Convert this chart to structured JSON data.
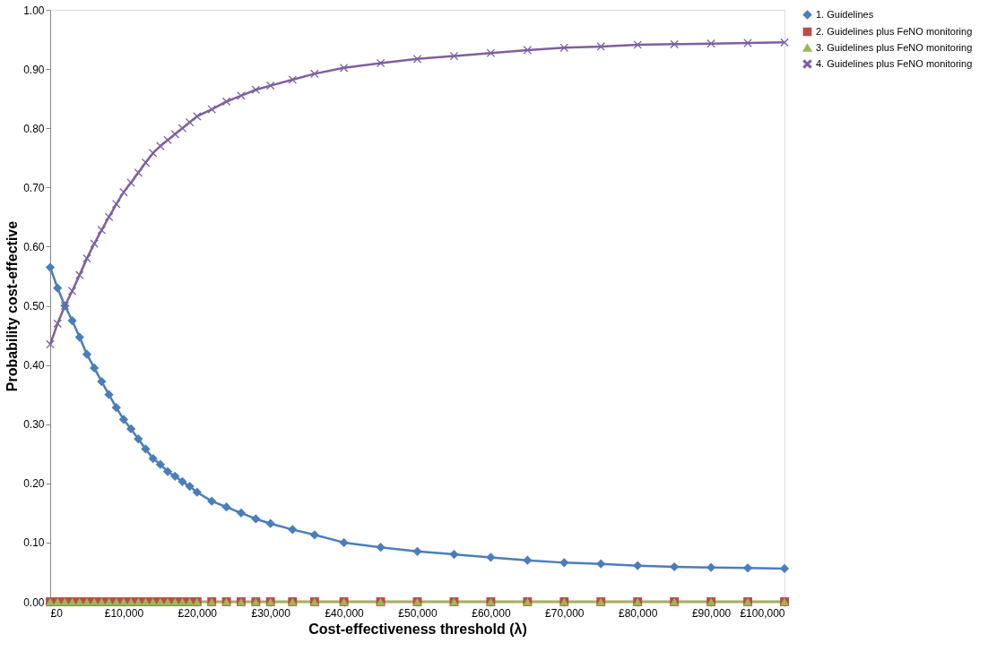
{
  "chart_data": {
    "type": "line",
    "xlabel": "Cost-effectiveness threshold (λ)",
    "ylabel": "Probability cost-effective",
    "x": [
      0,
      1000,
      2000,
      3000,
      4000,
      5000,
      6000,
      7000,
      8000,
      9000,
      10000,
      11000,
      12000,
      13000,
      14000,
      15000,
      16000,
      17000,
      18000,
      19000,
      20000,
      22000,
      24000,
      26000,
      28000,
      30000,
      33000,
      36000,
      40000,
      45000,
      50000,
      55000,
      60000,
      65000,
      70000,
      75000,
      80000,
      85000,
      90000,
      95000,
      100000
    ],
    "series": [
      {
        "name": "1. Guidelines",
        "color": "#4a7ebb",
        "marker": "diamond",
        "values": [
          0.565,
          0.53,
          0.5,
          0.475,
          0.447,
          0.418,
          0.395,
          0.372,
          0.35,
          0.328,
          0.308,
          0.292,
          0.275,
          0.258,
          0.242,
          0.232,
          0.22,
          0.212,
          0.203,
          0.195,
          0.185,
          0.17,
          0.16,
          0.15,
          0.14,
          0.132,
          0.122,
          0.113,
          0.1,
          0.092,
          0.085,
          0.08,
          0.075,
          0.07,
          0.066,
          0.064,
          0.061,
          0.059,
          0.058,
          0.057,
          0.056
        ]
      },
      {
        "name": "2. Guidelines plus FeNO monitoring",
        "color": "#be4b48",
        "marker": "square",
        "values": [
          0,
          0,
          0,
          0,
          0,
          0,
          0,
          0,
          0,
          0,
          0,
          0,
          0,
          0,
          0,
          0,
          0,
          0,
          0,
          0,
          0,
          0,
          0,
          0,
          0,
          0,
          0,
          0,
          0,
          0,
          0,
          0,
          0,
          0,
          0,
          0,
          0,
          0,
          0,
          0,
          0
        ]
      },
      {
        "name": "3. Guidelines plus FeNO monitoring",
        "color": "#98b954",
        "marker": "triangle",
        "values": [
          0,
          0,
          0,
          0,
          0,
          0,
          0,
          0,
          0,
          0,
          0,
          0,
          0,
          0,
          0,
          0,
          0,
          0,
          0,
          0,
          0,
          0,
          0,
          0,
          0,
          0,
          0,
          0,
          0,
          0,
          0,
          0,
          0,
          0,
          0,
          0,
          0,
          0,
          0,
          0,
          0
        ]
      },
      {
        "name": "4. Guidelines plus FeNO monitoring",
        "color": "#7d60a0",
        "marker": "cross",
        "values": [
          0.435,
          0.47,
          0.5,
          0.525,
          0.552,
          0.58,
          0.605,
          0.628,
          0.65,
          0.672,
          0.692,
          0.708,
          0.725,
          0.742,
          0.758,
          0.77,
          0.78,
          0.79,
          0.8,
          0.81,
          0.82,
          0.832,
          0.845,
          0.855,
          0.865,
          0.872,
          0.882,
          0.892,
          0.902,
          0.91,
          0.917,
          0.922,
          0.927,
          0.932,
          0.936,
          0.938,
          0.941,
          0.942,
          0.943,
          0.944,
          0.945
        ]
      }
    ],
    "xlim": [
      0,
      100000
    ],
    "xticks": [
      {
        "value": 0,
        "label": "£0"
      },
      {
        "value": 10000,
        "label": "£10,000"
      },
      {
        "value": 20000,
        "label": "£20,000"
      },
      {
        "value": 30000,
        "label": "£30,000"
      },
      {
        "value": 40000,
        "label": "£40,000"
      },
      {
        "value": 50000,
        "label": "£50,000"
      },
      {
        "value": 60000,
        "label": "£60,000"
      },
      {
        "value": 70000,
        "label": "£70,000"
      },
      {
        "value": 80000,
        "label": "£80,000"
      },
      {
        "value": 90000,
        "label": "£90,000"
      },
      {
        "value": 100000,
        "label": "£100,000"
      }
    ],
    "ylim": [
      0,
      1
    ],
    "yticks": [
      {
        "value": 0,
        "label": "0.00"
      },
      {
        "value": 0.1,
        "label": "0.10"
      },
      {
        "value": 0.2,
        "label": "0.20"
      },
      {
        "value": 0.3,
        "label": "0.30"
      },
      {
        "value": 0.4,
        "label": "0.40"
      },
      {
        "value": 0.5,
        "label": "0.50"
      },
      {
        "value": 0.6,
        "label": "0.60"
      },
      {
        "value": 0.7,
        "label": "0.70"
      },
      {
        "value": 0.8,
        "label": "0.80"
      },
      {
        "value": 0.9,
        "label": "0.90"
      },
      {
        "value": 1,
        "label": "1.00"
      }
    ],
    "grid": false,
    "legend": "right",
    "line_style": "solid"
  }
}
